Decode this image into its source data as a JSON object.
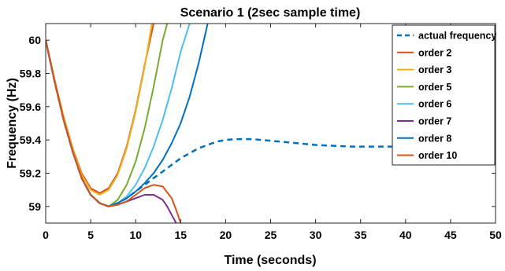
{
  "chart_data": {
    "type": "line",
    "title": "Scenario 1 (2sec sample time)",
    "xlabel": "Time (seconds)",
    "ylabel": "Frequency (Hz)",
    "xlim": [
      0,
      50
    ],
    "ylim": [
      58.9,
      60.1
    ],
    "xticks": [
      0,
      5,
      10,
      15,
      20,
      25,
      30,
      35,
      40,
      45,
      50
    ],
    "yticks": [
      59.0,
      59.2,
      59.4,
      59.6,
      59.8,
      60.0
    ],
    "ytick_labels": [
      "59",
      "59.2",
      "59.4",
      "59.6",
      "59.8",
      "60"
    ],
    "grid": false,
    "legend_position": "top-right",
    "series": [
      {
        "name": "actual frequency",
        "color": "#0072BD",
        "dash": true,
        "points": [
          [
            0,
            60.0
          ],
          [
            1,
            59.75
          ],
          [
            2,
            59.52
          ],
          [
            3,
            59.33
          ],
          [
            4,
            59.17
          ],
          [
            5,
            59.07
          ],
          [
            6,
            59.02
          ],
          [
            7,
            59.0
          ],
          [
            8,
            59.02
          ],
          [
            9,
            59.05
          ],
          [
            10,
            59.09
          ],
          [
            11,
            59.13
          ],
          [
            12,
            59.17
          ],
          [
            13,
            59.21
          ],
          [
            14,
            59.25
          ],
          [
            15,
            59.29
          ],
          [
            16,
            59.32
          ],
          [
            17,
            59.35
          ],
          [
            18,
            59.37
          ],
          [
            19,
            59.39
          ],
          [
            20,
            59.4
          ],
          [
            21,
            59.405
          ],
          [
            22,
            59.405
          ],
          [
            23,
            59.405
          ],
          [
            24,
            59.4
          ],
          [
            25,
            59.395
          ],
          [
            26,
            59.39
          ],
          [
            27,
            59.385
          ],
          [
            28,
            59.38
          ],
          [
            30,
            59.37
          ],
          [
            32,
            59.365
          ],
          [
            34,
            59.36
          ],
          [
            36,
            59.36
          ],
          [
            38,
            59.36
          ],
          [
            40,
            59.36
          ],
          [
            43,
            59.36
          ]
        ]
      },
      {
        "name": "order 2",
        "color": "#D95319",
        "dash": false,
        "points": [
          [
            0,
            60.0
          ],
          [
            1,
            59.76
          ],
          [
            2,
            59.54
          ],
          [
            3,
            59.35
          ],
          [
            4,
            59.2
          ],
          [
            5,
            59.11
          ],
          [
            6,
            59.08
          ],
          [
            7,
            59.11
          ],
          [
            8,
            59.2
          ],
          [
            9,
            59.36
          ],
          [
            10,
            59.58
          ],
          [
            11,
            59.85
          ],
          [
            12,
            60.1
          ]
        ]
      },
      {
        "name": "order 3",
        "color": "#EDB120",
        "dash": false,
        "points": [
          [
            0,
            60.0
          ],
          [
            1,
            59.76
          ],
          [
            2,
            59.54
          ],
          [
            3,
            59.35
          ],
          [
            4,
            59.19
          ],
          [
            5,
            59.1
          ],
          [
            6,
            59.07
          ],
          [
            7,
            59.1
          ],
          [
            8,
            59.19
          ],
          [
            9,
            59.35
          ],
          [
            10,
            59.57
          ],
          [
            11,
            59.84
          ],
          [
            11.5,
            60.0
          ],
          [
            11.8,
            60.1
          ]
        ]
      },
      {
        "name": "order 5",
        "color": "#77AC30",
        "dash": false,
        "points": [
          [
            0,
            60.0
          ],
          [
            1,
            59.75
          ],
          [
            2,
            59.52
          ],
          [
            3,
            59.33
          ],
          [
            4,
            59.17
          ],
          [
            5,
            59.07
          ],
          [
            6,
            59.02
          ],
          [
            7,
            59.0
          ],
          [
            8,
            59.04
          ],
          [
            9,
            59.13
          ],
          [
            10,
            59.27
          ],
          [
            11,
            59.47
          ],
          [
            12,
            59.72
          ],
          [
            13,
            60.0
          ],
          [
            13.5,
            60.1
          ]
        ]
      },
      {
        "name": "order 6",
        "color": "#4DBEEE",
        "dash": false,
        "points": [
          [
            0,
            60.0
          ],
          [
            1,
            59.75
          ],
          [
            2,
            59.52
          ],
          [
            3,
            59.33
          ],
          [
            4,
            59.17
          ],
          [
            5,
            59.07
          ],
          [
            6,
            59.02
          ],
          [
            7,
            59.0
          ],
          [
            8,
            59.02
          ],
          [
            9,
            59.06
          ],
          [
            10,
            59.13
          ],
          [
            11,
            59.23
          ],
          [
            12,
            59.36
          ],
          [
            13,
            59.52
          ],
          [
            14,
            59.71
          ],
          [
            15,
            59.93
          ],
          [
            16,
            60.1
          ]
        ]
      },
      {
        "name": "order 7",
        "color": "#7E2F8E",
        "dash": false,
        "points": [
          [
            0,
            60.0
          ],
          [
            1,
            59.75
          ],
          [
            2,
            59.52
          ],
          [
            3,
            59.33
          ],
          [
            4,
            59.17
          ],
          [
            5,
            59.07
          ],
          [
            6,
            59.02
          ],
          [
            7,
            59.0
          ],
          [
            8,
            59.01
          ],
          [
            9,
            59.03
          ],
          [
            10,
            59.05
          ],
          [
            11,
            59.07
          ],
          [
            12,
            59.07
          ],
          [
            13,
            59.04
          ],
          [
            13.5,
            59.0
          ],
          [
            14,
            58.95
          ],
          [
            14.5,
            58.9
          ]
        ]
      },
      {
        "name": "order 8",
        "color": "#0072BD",
        "dash": false,
        "points": [
          [
            0,
            60.0
          ],
          [
            1,
            59.75
          ],
          [
            2,
            59.52
          ],
          [
            3,
            59.33
          ],
          [
            4,
            59.17
          ],
          [
            5,
            59.07
          ],
          [
            6,
            59.02
          ],
          [
            7,
            59.0
          ],
          [
            8,
            59.02
          ],
          [
            9,
            59.05
          ],
          [
            10,
            59.09
          ],
          [
            11,
            59.14
          ],
          [
            12,
            59.2
          ],
          [
            13,
            59.28
          ],
          [
            14,
            59.38
          ],
          [
            15,
            59.5
          ],
          [
            16,
            59.66
          ],
          [
            17,
            59.86
          ],
          [
            18,
            60.1
          ]
        ]
      },
      {
        "name": "order 10",
        "color": "#D95319",
        "dash": false,
        "points": [
          [
            0,
            60.0
          ],
          [
            1,
            59.75
          ],
          [
            2,
            59.52
          ],
          [
            3,
            59.33
          ],
          [
            4,
            59.17
          ],
          [
            5,
            59.07
          ],
          [
            6,
            59.02
          ],
          [
            7,
            59.0
          ],
          [
            8,
            59.01
          ],
          [
            9,
            59.03
          ],
          [
            10,
            59.07
          ],
          [
            11,
            59.11
          ],
          [
            12,
            59.13
          ],
          [
            13,
            59.12
          ],
          [
            14,
            59.05
          ],
          [
            14.5,
            58.98
          ],
          [
            15,
            58.9
          ]
        ]
      }
    ]
  }
}
